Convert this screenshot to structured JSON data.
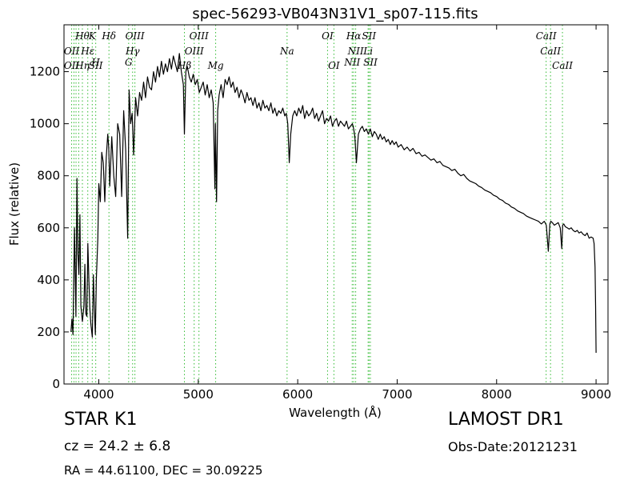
{
  "chart_data": {
    "type": "line",
    "title": "spec-56293-VB043N31V1_sp07-115.fits",
    "xlabel": "Wavelength (Å)",
    "ylabel": "Flux (relative)",
    "xlim": [
      3650,
      9120
    ],
    "ylim": [
      0,
      1380
    ],
    "xticks": [
      4000,
      5000,
      6000,
      7000,
      8000,
      9000
    ],
    "yticks": [
      0,
      200,
      400,
      600,
      800,
      1000,
      1200
    ],
    "grid": false,
    "series_color": "#000000",
    "marker_line_color": "#33bb33",
    "series": [
      {
        "x": [
          3720,
          3730,
          3740,
          3755,
          3770,
          3780,
          3790,
          3800,
          3810,
          3820,
          3835,
          3850,
          3860,
          3870,
          3880,
          3890,
          3900,
          3910,
          3920,
          3935,
          3945,
          3955,
          3965,
          3975,
          3990,
          4000,
          4015,
          4030,
          4045,
          4060,
          4075,
          4090,
          4100,
          4110,
          4130,
          4150,
          4170,
          4190,
          4210,
          4230,
          4250,
          4270,
          4290,
          4305,
          4320,
          4335,
          4350,
          4370,
          4390,
          4410,
          4430,
          4450,
          4470,
          4490,
          4510,
          4530,
          4550,
          4570,
          4590,
          4610,
          4630,
          4650,
          4670,
          4690,
          4710,
          4730,
          4750,
          4770,
          4790,
          4810,
          4830,
          4850,
          4861,
          4875,
          4890,
          4910,
          4930,
          4950,
          4970,
          4990,
          5010,
          5030,
          5050,
          5070,
          5090,
          5110,
          5130,
          5150,
          5167,
          5173,
          5184,
          5195,
          5210,
          5230,
          5250,
          5270,
          5290,
          5310,
          5330,
          5350,
          5370,
          5390,
          5410,
          5430,
          5450,
          5470,
          5490,
          5510,
          5530,
          5550,
          5570,
          5590,
          5610,
          5630,
          5650,
          5670,
          5690,
          5710,
          5730,
          5750,
          5770,
          5790,
          5810,
          5830,
          5850,
          5870,
          5885,
          5893,
          5900,
          5915,
          5930,
          5950,
          5970,
          5990,
          6010,
          6030,
          6050,
          6070,
          6090,
          6110,
          6130,
          6150,
          6170,
          6190,
          6210,
          6230,
          6250,
          6270,
          6290,
          6310,
          6330,
          6350,
          6370,
          6390,
          6410,
          6430,
          6450,
          6470,
          6490,
          6510,
          6530,
          6550,
          6563,
          6575,
          6590,
          6610,
          6630,
          6650,
          6670,
          6690,
          6710,
          6730,
          6750,
          6770,
          6790,
          6810,
          6830,
          6850,
          6870,
          6890,
          6910,
          6930,
          6950,
          6970,
          6990,
          7010,
          7040,
          7070,
          7100,
          7130,
          7160,
          7190,
          7220,
          7250,
          7280,
          7310,
          7340,
          7370,
          7400,
          7430,
          7460,
          7490,
          7520,
          7550,
          7580,
          7610,
          7640,
          7670,
          7700,
          7730,
          7760,
          7790,
          7820,
          7850,
          7880,
          7910,
          7940,
          7970,
          8000,
          8030,
          8060,
          8090,
          8120,
          8150,
          8180,
          8210,
          8240,
          8270,
          8300,
          8330,
          8360,
          8390,
          8420,
          8450,
          8480,
          8500,
          8520,
          8535,
          8545,
          8560,
          8580,
          8600,
          8620,
          8640,
          8655,
          8664,
          8675,
          8690,
          8710,
          8730,
          8750,
          8770,
          8790,
          8810,
          8830,
          8850,
          8870,
          8890,
          8910,
          8930,
          8950,
          8970,
          8980,
          8990,
          8995,
          9000
        ],
        "y": [
          200,
          250,
          190,
          600,
          260,
          790,
          500,
          420,
          650,
          300,
          240,
          300,
          460,
          270,
          260,
          540,
          400,
          290,
          230,
          180,
          420,
          300,
          190,
          400,
          560,
          770,
          700,
          890,
          850,
          700,
          870,
          960,
          910,
          760,
          950,
          800,
          720,
          1000,
          960,
          720,
          1050,
          900,
          560,
          1130,
          1000,
          1040,
          880,
          1100,
          1030,
          1120,
          1090,
          1160,
          1100,
          1180,
          1140,
          1130,
          1200,
          1160,
          1220,
          1180,
          1240,
          1190,
          1230,
          1200,
          1250,
          1210,
          1260,
          1230,
          1200,
          1270,
          1200,
          1150,
          960,
          1200,
          1220,
          1180,
          1160,
          1190,
          1150,
          1170,
          1120,
          1140,
          1160,
          1110,
          1150,
          1100,
          1130,
          1080,
          750,
          1000,
          700,
          1050,
          1110,
          1150,
          1100,
          1170,
          1150,
          1180,
          1140,
          1160,
          1120,
          1140,
          1100,
          1130,
          1110,
          1080,
          1120,
          1090,
          1100,
          1070,
          1100,
          1060,
          1080,
          1050,
          1090,
          1060,
          1070,
          1050,
          1080,
          1040,
          1060,
          1030,
          1050,
          1040,
          1060,
          1030,
          1040,
          1020,
          1000,
          850,
          960,
          1030,
          1050,
          1030,
          1060,
          1040,
          1070,
          1020,
          1050,
          1030,
          1040,
          1060,
          1020,
          1040,
          1010,
          1030,
          1050,
          1000,
          1020,
          1010,
          1030,
          990,
          1010,
          1020,
          990,
          1010,
          1000,
          990,
          1010,
          980,
          990,
          1000,
          980,
          950,
          850,
          960,
          980,
          990,
          970,
          980,
          960,
          980,
          950,
          970,
          960,
          940,
          960,
          940,
          950,
          930,
          940,
          920,
          935,
          920,
          930,
          910,
          920,
          900,
          910,
          895,
          905,
          885,
          890,
          875,
          880,
          870,
          860,
          865,
          850,
          855,
          840,
          835,
          830,
          820,
          825,
          810,
          800,
          805,
          790,
          780,
          775,
          770,
          760,
          755,
          745,
          740,
          735,
          725,
          720,
          710,
          705,
          695,
          690,
          680,
          675,
          665,
          660,
          655,
          645,
          640,
          635,
          630,
          625,
          615,
          625,
          610,
          510,
          615,
          625,
          620,
          610,
          615,
          620,
          600,
          520,
          610,
          615,
          605,
          600,
          595,
          600,
          590,
          585,
          590,
          580,
          585,
          575,
          570,
          580,
          560,
          565,
          560,
          540,
          450,
          300,
          120
        ]
      }
    ],
    "reference_lines": [
      {
        "x": 3727,
        "labels": [
          "OII",
          "OII"
        ]
      },
      {
        "x": 3750,
        "labels": []
      },
      {
        "x": 3771,
        "labels": []
      },
      {
        "x": 3798,
        "labels": []
      },
      {
        "x": 3835,
        "labels": [
          "Hθ",
          "Hη"
        ]
      },
      {
        "x": 3889,
        "labels": [
          "Hε"
        ]
      },
      {
        "x": 3934,
        "labels": [
          "K",
          "H"
        ]
      },
      {
        "x": 3969,
        "labels": [
          "SII"
        ]
      },
      {
        "x": 4102,
        "labels": [
          "Hδ",
          "SII"
        ]
      },
      {
        "x": 4300,
        "labels": [
          "G"
        ]
      },
      {
        "x": 4340,
        "labels": [
          "Hγ"
        ]
      },
      {
        "x": 4363,
        "labels": [
          "OIII"
        ]
      },
      {
        "x": 4861,
        "labels": [
          "Hβ"
        ]
      },
      {
        "x": 4959,
        "labels": [
          "OIII",
          "OIII"
        ]
      },
      {
        "x": 5007,
        "labels": []
      },
      {
        "x": 5175,
        "labels": [
          "Mg"
        ]
      },
      {
        "x": 5893,
        "labels": [
          "Na"
        ]
      },
      {
        "x": 6300,
        "labels": [
          "OI",
          "OI"
        ]
      },
      {
        "x": 6364,
        "labels": []
      },
      {
        "x": 6548,
        "labels": [
          "NII"
        ]
      },
      {
        "x": 6563,
        "labels": [
          "Hα"
        ]
      },
      {
        "x": 6583,
        "labels": [
          "NII"
        ]
      },
      {
        "x": 6708,
        "labels": [
          "Li"
        ]
      },
      {
        "x": 6717,
        "labels": [
          "SII",
          "SII"
        ]
      },
      {
        "x": 6731,
        "labels": []
      },
      {
        "x": 8498,
        "labels": [
          "CaII"
        ]
      },
      {
        "x": 8542,
        "labels": [
          "CaII"
        ]
      },
      {
        "x": 8662,
        "labels": [
          "CaII"
        ]
      }
    ],
    "line_labels": [
      {
        "text": "Hθ",
        "x": 3835,
        "row": 1
      },
      {
        "text": "K",
        "x": 3934,
        "row": 1
      },
      {
        "text": "Hδ",
        "x": 4102,
        "row": 1
      },
      {
        "text": "OIII",
        "x": 4363,
        "row": 1
      },
      {
        "text": "OIII",
        "x": 5007,
        "row": 1
      },
      {
        "text": "OI",
        "x": 6300,
        "row": 1
      },
      {
        "text": "Hα",
        "x": 6563,
        "row": 1
      },
      {
        "text": "SII",
        "x": 6717,
        "row": 1
      },
      {
        "text": "CaII",
        "x": 8498,
        "row": 1
      },
      {
        "text": "OII",
        "x": 3727,
        "row": 2
      },
      {
        "text": "Hε",
        "x": 3889,
        "row": 2
      },
      {
        "text": "Hγ",
        "x": 4340,
        "row": 2
      },
      {
        "text": "OIII",
        "x": 4959,
        "row": 2
      },
      {
        "text": "Na",
        "x": 5893,
        "row": 2
      },
      {
        "text": "NII",
        "x": 6583,
        "row": 2
      },
      {
        "text": "Li",
        "x": 6708,
        "row": 2
      },
      {
        "text": "CaII",
        "x": 8542,
        "row": 2
      },
      {
        "text": "OII",
        "x": 3727,
        "row": 3
      },
      {
        "text": "Hη",
        "x": 3835,
        "row": 3
      },
      {
        "text": "SII",
        "x": 3969,
        "row": 3
      },
      {
        "text": "Hβ",
        "x": 4861,
        "row": 3
      },
      {
        "text": "Mg",
        "x": 5175,
        "row": 3
      },
      {
        "text": "OI",
        "x": 6364,
        "row": 3
      },
      {
        "text": "CaII",
        "x": 8662,
        "row": 3
      },
      {
        "text": "H",
        "x": 3969,
        "row": 4
      },
      {
        "text": "G",
        "x": 4300,
        "row": 4
      },
      {
        "text": "NII",
        "x": 6548,
        "row": 4
      },
      {
        "text": "SII",
        "x": 6731,
        "row": 4
      }
    ]
  },
  "info": {
    "object_class": "STAR   K1",
    "survey": "LAMOST DR1",
    "redshift": "cz = 24.2  ± 6.8",
    "obs_date": "Obs-Date:20121231",
    "coordinates": "RA = 44.61100, DEC = 30.09225"
  }
}
